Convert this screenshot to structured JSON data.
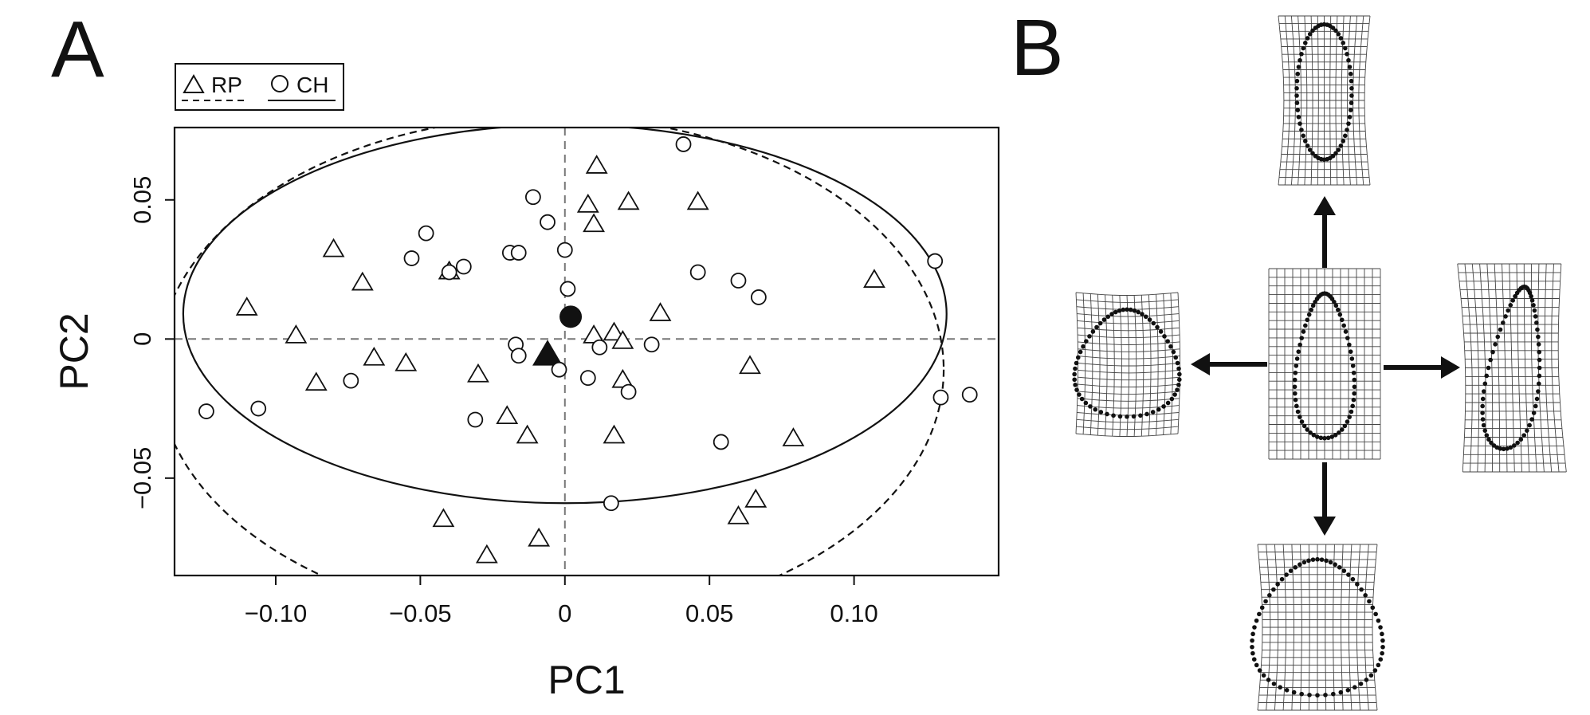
{
  "panels": {
    "a_label": "A",
    "b_label": "B"
  },
  "chart_data": {
    "type": "scatter",
    "xlabel": "PC1",
    "ylabel": "PC2",
    "xlim": [
      -0.135,
      0.15
    ],
    "ylim": [
      -0.085,
      0.076
    ],
    "x_ticks": [
      -0.1,
      -0.05,
      0,
      0.05,
      0.1
    ],
    "x_tick_labels": [
      "−0.10",
      "−0.05",
      "0",
      "0.05",
      "0.10"
    ],
    "y_ticks": [
      -0.05,
      0,
      0.05
    ],
    "y_tick_labels": [
      "−0.05",
      "0",
      "0.05"
    ],
    "zero_reference_lines": "dashed at x = 0 and y = 0",
    "grid": false,
    "legend": {
      "placement": "top-left, above plot",
      "entries": [
        {
          "label": "RP",
          "marker": "open triangle",
          "line": "dashed"
        },
        {
          "label": "CH",
          "marker": "open circle",
          "line": "solid"
        }
      ]
    },
    "series": [
      {
        "name": "RP",
        "marker": "triangle",
        "points": [
          [
            0.011,
            0.062
          ],
          [
            0.008,
            0.048
          ],
          [
            0.022,
            0.049
          ],
          [
            0.046,
            0.049
          ],
          [
            0.01,
            0.041
          ],
          [
            -0.08,
            0.032
          ],
          [
            -0.07,
            0.02
          ],
          [
            -0.04,
            0.024
          ],
          [
            0.107,
            0.021
          ],
          [
            -0.11,
            0.011
          ],
          [
            0.033,
            0.009
          ],
          [
            -0.093,
            0.001
          ],
          [
            0.01,
            0.001
          ],
          [
            0.017,
            0.002
          ],
          [
            0.02,
            -0.001
          ],
          [
            -0.066,
            -0.007
          ],
          [
            -0.055,
            -0.009
          ],
          [
            0.064,
            -0.01
          ],
          [
            -0.086,
            -0.016
          ],
          [
            -0.03,
            -0.013
          ],
          [
            0.02,
            -0.015
          ],
          [
            -0.02,
            -0.028
          ],
          [
            -0.013,
            -0.035
          ],
          [
            0.017,
            -0.035
          ],
          [
            0.079,
            -0.036
          ],
          [
            -0.042,
            -0.065
          ],
          [
            0.066,
            -0.058
          ],
          [
            0.06,
            -0.064
          ],
          [
            -0.009,
            -0.072
          ],
          [
            -0.027,
            -0.078
          ]
        ],
        "mean": [
          -0.006,
          -0.006
        ],
        "ellipse": {
          "center": [
            -0.005,
            -0.011
          ],
          "semi_axis_x": 0.136,
          "semi_axis_y": 0.091,
          "style": "dashed"
        }
      },
      {
        "name": "CH",
        "marker": "circle",
        "points": [
          [
            0.041,
            0.07
          ],
          [
            -0.011,
            0.051
          ],
          [
            -0.006,
            0.042
          ],
          [
            -0.048,
            0.038
          ],
          [
            0.0,
            0.032
          ],
          [
            -0.019,
            0.031
          ],
          [
            -0.016,
            0.031
          ],
          [
            -0.053,
            0.029
          ],
          [
            -0.035,
            0.026
          ],
          [
            -0.04,
            0.024
          ],
          [
            0.046,
            0.024
          ],
          [
            0.06,
            0.021
          ],
          [
            0.067,
            0.015
          ],
          [
            0.001,
            0.018
          ],
          [
            0.128,
            0.028
          ],
          [
            -0.017,
            -0.002
          ],
          [
            -0.016,
            -0.006
          ],
          [
            0.012,
            -0.003
          ],
          [
            0.03,
            -0.002
          ],
          [
            -0.002,
            -0.011
          ],
          [
            0.008,
            -0.014
          ],
          [
            0.022,
            -0.019
          ],
          [
            -0.074,
            -0.015
          ],
          [
            -0.031,
            -0.029
          ],
          [
            0.054,
            -0.037
          ],
          [
            0.016,
            -0.059
          ],
          [
            -0.106,
            -0.025
          ],
          [
            -0.124,
            -0.026
          ],
          [
            0.13,
            -0.021
          ],
          [
            0.14,
            -0.02
          ]
        ],
        "mean": [
          0.002,
          0.008
        ],
        "ellipse": {
          "center": [
            0.0,
            0.009
          ],
          "semi_axis_x": 0.132,
          "semi_axis_y": 0.068,
          "style": "solid"
        }
      }
    ]
  },
  "deformation_grids": [
    {
      "position": "center",
      "shape": "consensus teardrop outline"
    },
    {
      "position": "top",
      "shape": "elongated oval outline"
    },
    {
      "position": "bottom",
      "shape": "inverted teardrop outline"
    },
    {
      "position": "left",
      "shape": "rounded broad outline"
    },
    {
      "position": "right",
      "shape": "slanted narrow outline"
    }
  ]
}
